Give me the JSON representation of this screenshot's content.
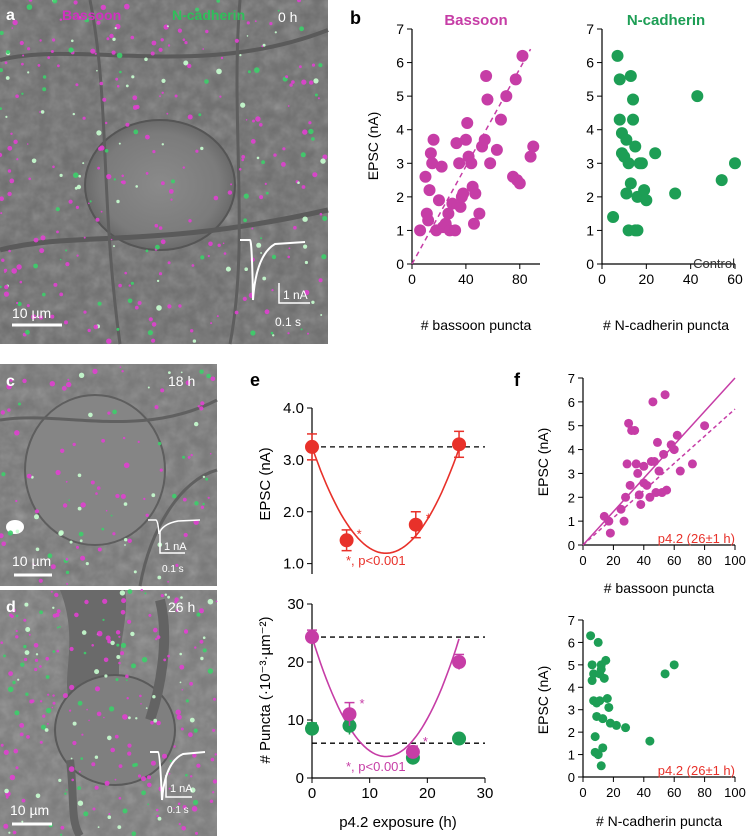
{
  "colors": {
    "bassoon": "#c63da6",
    "ncad": "#1d9e55",
    "red": "#e8312a",
    "black": "#000000",
    "gray": "#7a7a7a"
  },
  "panels": {
    "a": "a",
    "b": "b",
    "c": "c",
    "d": "d",
    "e": "e",
    "f": "f"
  },
  "micrographs": {
    "a": {
      "label_bassoon": "Bassoon",
      "label_ncad": "N-cadherin",
      "time": "0 h",
      "scale": "10 µm",
      "trace_y": "1 nA",
      "trace_x": "0.1 s"
    },
    "c": {
      "time": "18 h",
      "scale": "10 µm",
      "trace_y": "1 nA",
      "trace_x": "0.1 s"
    },
    "d": {
      "time": "26 h",
      "scale": "10 µm",
      "trace_y": "1 nA",
      "trace_x": "0.1 s"
    }
  },
  "chart_data": [
    {
      "id": "b-bassoon",
      "type": "scatter",
      "title": "Bassoon",
      "xlabel": "# bassoon puncta",
      "ylabel": "EPSC (nA)",
      "xlim": [
        0,
        95
      ],
      "ylim": [
        0,
        7
      ],
      "xticks": [
        0,
        40,
        80
      ],
      "yticks": [
        0,
        1,
        2,
        3,
        4,
        5,
        6,
        7
      ],
      "points": [
        [
          6,
          1.0
        ],
        [
          10,
          2.6
        ],
        [
          11,
          1.5
        ],
        [
          12,
          1.3
        ],
        [
          13,
          2.2
        ],
        [
          14,
          3.3
        ],
        [
          15,
          3.0
        ],
        [
          16,
          3.7
        ],
        [
          18,
          1.0
        ],
        [
          20,
          1.9
        ],
        [
          22,
          2.9
        ],
        [
          23,
          1.1
        ],
        [
          25,
          1.2
        ],
        [
          27,
          1.5
        ],
        [
          28,
          1.0
        ],
        [
          30,
          1.8
        ],
        [
          32,
          1.0
        ],
        [
          33,
          3.6
        ],
        [
          35,
          3.0
        ],
        [
          36,
          1.7
        ],
        [
          37,
          2.0
        ],
        [
          38,
          2.1
        ],
        [
          40,
          3.7
        ],
        [
          41,
          4.2
        ],
        [
          42,
          3.2
        ],
        [
          44,
          3.0
        ],
        [
          45,
          2.3
        ],
        [
          46,
          1.2
        ],
        [
          47,
          2.1
        ],
        [
          50,
          1.5
        ],
        [
          52,
          3.5
        ],
        [
          54,
          3.7
        ],
        [
          55,
          5.6
        ],
        [
          56,
          4.9
        ],
        [
          58,
          3.0
        ],
        [
          63,
          3.4
        ],
        [
          66,
          4.3
        ],
        [
          70,
          5.0
        ],
        [
          75,
          2.6
        ],
        [
          77,
          5.5
        ],
        [
          78,
          2.5
        ],
        [
          80,
          2.4
        ],
        [
          82,
          6.2
        ],
        [
          88,
          3.2
        ],
        [
          90,
          3.5
        ]
      ],
      "fit": [
        [
          0,
          0
        ],
        [
          88,
          6.4
        ]
      ],
      "fit_style": "dashed"
    },
    {
      "id": "b-ncad",
      "type": "scatter",
      "title": "N-cadherin",
      "xlabel": "# N-cadherin puncta",
      "ylabel": "",
      "annotation": "Control",
      "xlim": [
        0,
        60
      ],
      "ylim": [
        0,
        7
      ],
      "xticks": [
        0,
        20,
        40,
        60
      ],
      "yticks": [
        0,
        1,
        2,
        3,
        4,
        5,
        6,
        7
      ],
      "points": [
        [
          5,
          1.4
        ],
        [
          7,
          6.2
        ],
        [
          8,
          5.5
        ],
        [
          8,
          4.3
        ],
        [
          9,
          3.9
        ],
        [
          9,
          3.3
        ],
        [
          10,
          3.2
        ],
        [
          11,
          2.1
        ],
        [
          11,
          3.7
        ],
        [
          12,
          1.0
        ],
        [
          12,
          3.0
        ],
        [
          13,
          5.6
        ],
        [
          13,
          2.4
        ],
        [
          14,
          4.9
        ],
        [
          14,
          4.3
        ],
        [
          15,
          3.5
        ],
        [
          15,
          1.0
        ],
        [
          16,
          1.0
        ],
        [
          16,
          2.0
        ],
        [
          17,
          3.0
        ],
        [
          18,
          3.0
        ],
        [
          19,
          2.2
        ],
        [
          20,
          1.9
        ],
        [
          24,
          3.3
        ],
        [
          33,
          2.1
        ],
        [
          43,
          5.0
        ],
        [
          54,
          2.5
        ],
        [
          60,
          3.0
        ]
      ]
    },
    {
      "id": "e-epsc",
      "type": "line",
      "xlabel": "",
      "ylabel": "EPSC (nA)",
      "xlim": [
        0,
        30
      ],
      "ylim": [
        0.8,
        4.0
      ],
      "yticks": [
        1.0,
        2.0,
        3.0,
        4.0
      ],
      "ytick_labels": [
        "1.0",
        "2.0",
        "3.0",
        "4.0"
      ],
      "points": [
        {
          "x": 0,
          "y": 3.25,
          "err": 0.25,
          "star": false
        },
        {
          "x": 6,
          "y": 1.45,
          "err": 0.2,
          "star": true
        },
        {
          "x": 18,
          "y": 1.75,
          "err": 0.25,
          "star": true
        },
        {
          "x": 25.5,
          "y": 3.3,
          "err": 0.25,
          "star": false
        }
      ],
      "baseline": 3.25,
      "note": "*, p<0.001"
    },
    {
      "id": "e-puncta",
      "type": "line",
      "xlabel": "p4.2 exposure (h)",
      "ylabel": "# Puncta (·10⁻³·µm⁻²)",
      "xlim": [
        0,
        30
      ],
      "ylim": [
        0,
        30
      ],
      "xticks": [
        0,
        10,
        20,
        30
      ],
      "yticks": [
        0,
        10,
        20,
        30
      ],
      "bassoon": [
        {
          "x": 0,
          "y": 24.3,
          "err": 1.2,
          "star": false
        },
        {
          "x": 6.5,
          "y": 11.0,
          "err": 2.0,
          "star": true
        },
        {
          "x": 17.5,
          "y": 4.5,
          "err": 1.0,
          "star": true
        },
        {
          "x": 25.5,
          "y": 20.0,
          "err": 1.3,
          "star": false
        }
      ],
      "ncadherin": [
        {
          "x": 0,
          "y": 8.5,
          "err": 1.0
        },
        {
          "x": 6.5,
          "y": 9.0,
          "err": 1.5
        },
        {
          "x": 17.5,
          "y": 3.5,
          "err": 0.5
        },
        {
          "x": 25.5,
          "y": 6.8,
          "err": 0.5
        }
      ],
      "baseline_bassoon": 24.3,
      "baseline_ncad": 6.0,
      "note": "*, p<0.001"
    },
    {
      "id": "f-bassoon",
      "type": "scatter",
      "xlabel": "# bassoon puncta",
      "ylabel": "EPSC (nA)",
      "xlim": [
        0,
        100
      ],
      "ylim": [
        0,
        7
      ],
      "xticks": [
        0,
        20,
        40,
        60,
        80,
        100
      ],
      "yticks": [
        0,
        1,
        2,
        3,
        4,
        5,
        6,
        7
      ],
      "annotation": "p4.2 (26±1 h)",
      "points": [
        [
          14,
          1.2
        ],
        [
          17,
          1.0
        ],
        [
          18,
          0.5
        ],
        [
          25,
          1.5
        ],
        [
          27,
          1.0
        ],
        [
          28,
          2.0
        ],
        [
          29,
          3.4
        ],
        [
          30,
          5.1
        ],
        [
          31,
          2.5
        ],
        [
          32,
          4.8
        ],
        [
          34,
          4.8
        ],
        [
          35,
          3.4
        ],
        [
          36,
          3.0
        ],
        [
          37,
          2.1
        ],
        [
          38,
          1.7
        ],
        [
          40,
          3.3
        ],
        [
          40,
          2.6
        ],
        [
          42,
          2.5
        ],
        [
          44,
          2.0
        ],
        [
          45,
          3.5
        ],
        [
          46,
          6.0
        ],
        [
          47,
          3.5
        ],
        [
          48,
          2.2
        ],
        [
          49,
          4.3
        ],
        [
          50,
          3.1
        ],
        [
          52,
          2.2
        ],
        [
          53,
          3.8
        ],
        [
          54,
          6.3
        ],
        [
          55,
          2.3
        ],
        [
          58,
          4.2
        ],
        [
          60,
          4.0
        ],
        [
          62,
          4.6
        ],
        [
          64,
          3.1
        ],
        [
          72,
          3.4
        ],
        [
          80,
          5.0
        ]
      ],
      "fit_solid": [
        [
          0,
          0
        ],
        [
          100,
          7.0
        ]
      ],
      "fit_dashed": [
        [
          0,
          0
        ],
        [
          100,
          5.7
        ]
      ]
    },
    {
      "id": "f-ncad",
      "type": "scatter",
      "xlabel": "# N-cadherin puncta",
      "ylabel": "EPSC (nA)",
      "xlim": [
        0,
        100
      ],
      "ylim": [
        0,
        7
      ],
      "xticks": [
        0,
        20,
        40,
        60,
        80,
        100
      ],
      "yticks": [
        0,
        1,
        2,
        3,
        4,
        5,
        6,
        7
      ],
      "annotation": "p4.2 (26±1 h)",
      "points": [
        [
          5,
          6.3
        ],
        [
          6,
          5.0
        ],
        [
          6,
          4.3
        ],
        [
          7,
          4.6
        ],
        [
          7,
          3.4
        ],
        [
          8,
          1.8
        ],
        [
          8,
          1.1
        ],
        [
          9,
          3.3
        ],
        [
          9,
          2.7
        ],
        [
          10,
          1.0
        ],
        [
          10,
          6.0
        ],
        [
          11,
          4.6
        ],
        [
          11,
          3.4
        ],
        [
          12,
          5.0
        ],
        [
          12,
          4.8
        ],
        [
          12,
          0.5
        ],
        [
          13,
          1.3
        ],
        [
          13,
          2.6
        ],
        [
          14,
          4.4
        ],
        [
          15,
          5.2
        ],
        [
          16,
          3.5
        ],
        [
          17,
          3.1
        ],
        [
          18,
          2.4
        ],
        [
          22,
          2.3
        ],
        [
          28,
          2.2
        ],
        [
          44,
          1.6
        ],
        [
          54,
          4.6
        ],
        [
          60,
          5.0
        ]
      ]
    }
  ]
}
